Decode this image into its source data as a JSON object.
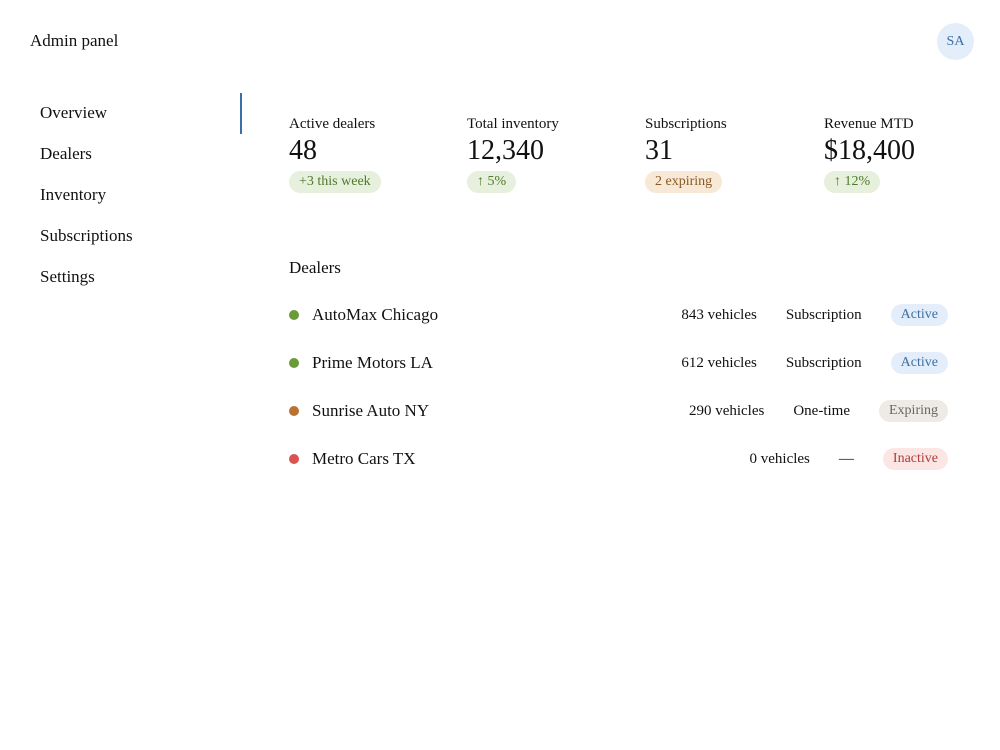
{
  "header": {
    "title": "Admin panel",
    "avatar": "SA"
  },
  "nav": [
    "Overview",
    "Dealers",
    "Inventory",
    "Subscriptions",
    "Settings"
  ],
  "stats": [
    {
      "label": "Active dealers",
      "value": "48",
      "badge": "+3 this week"
    },
    {
      "label": "Total inventory",
      "value": "12,340",
      "badge": "↑ 5%"
    },
    {
      "label": "Subscriptions",
      "value": "31",
      "badge": "2 expiring"
    },
    {
      "label": "Revenue MTD",
      "value": "$18,400",
      "badge": "↑ 12%"
    }
  ],
  "dealers": {
    "title": "Dealers",
    "rows": [
      {
        "name": "AutoMax Chicago",
        "vehicles": "843 vehicles",
        "plan": "Subscription",
        "status": "Active"
      },
      {
        "name": "Prime Motors LA",
        "vehicles": "612 vehicles",
        "plan": "Subscription",
        "status": "Active"
      },
      {
        "name": "Sunrise Auto NY",
        "vehicles": "290 vehicles",
        "plan": "One-time",
        "status": "Expiring"
      },
      {
        "name": "Metro Cars TX",
        "vehicles": "0 vehicles",
        "plan": "—",
        "status": "Inactive"
      }
    ]
  }
}
